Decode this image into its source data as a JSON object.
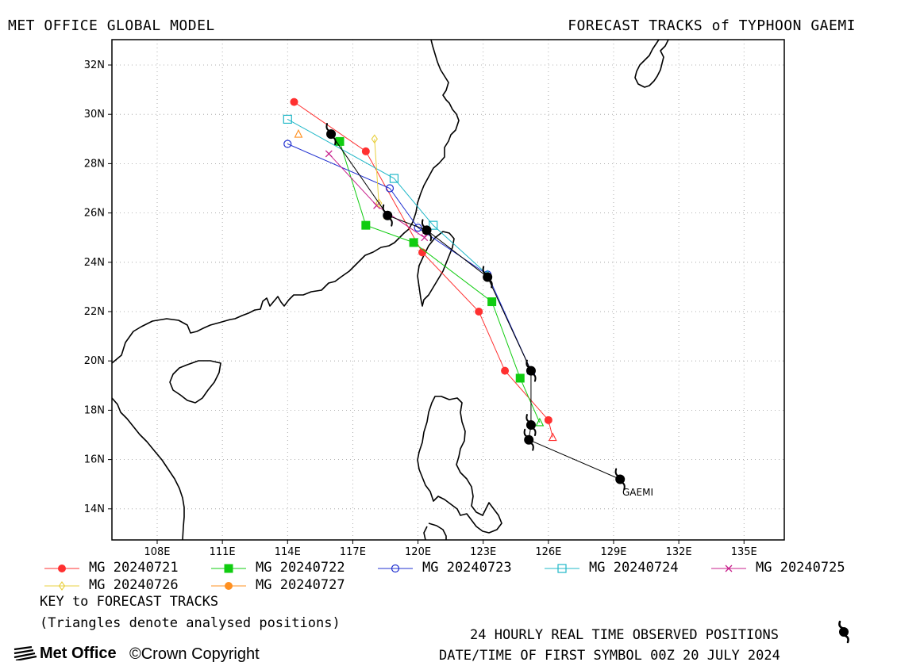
{
  "header": {
    "left": "MET OFFICE GLOBAL MODEL",
    "right": "FORECAST TRACKS of TYPHOON GAEMI"
  },
  "axes": {
    "lon_ticks": [
      "108E",
      "111E",
      "114E",
      "117E",
      "120E",
      "123E",
      "126E",
      "129E",
      "132E",
      "135E"
    ],
    "lat_ticks": [
      "32N",
      "30N",
      "28N",
      "26N",
      "24N",
      "22N",
      "20N",
      "18N",
      "16N",
      "14N"
    ],
    "grid": "dotted"
  },
  "storm_label": "GAEMI",
  "colors": {
    "MG 20240721": "#ff3030",
    "MG 20240722": "#10cc10",
    "MG 20240723": "#2030d0",
    "MG 20240724": "#20b8c8",
    "MG 20240725": "#c8208c",
    "MG 20240726": "#e8d040",
    "MG 20240727": "#ff9020",
    "observed": "#000000"
  },
  "legend": [
    {
      "label": "MG 20240721",
      "marker": "circle"
    },
    {
      "label": "MG 20240722",
      "marker": "square"
    },
    {
      "label": "MG 20240723",
      "marker": "open-circle"
    },
    {
      "label": "MG 20240724",
      "marker": "open-square"
    },
    {
      "label": "MG 20240725",
      "marker": "cross"
    },
    {
      "label": "MG 20240726",
      "marker": "open-diamond"
    },
    {
      "label": "MG 20240727",
      "marker": "circle"
    }
  ],
  "notes": {
    "key": "KEY to FORECAST TRACKS",
    "triangles": "(Triangles denote analysed positions)",
    "observed": "24 HOURLY REAL TIME OBSERVED POSITIONS",
    "first_symbol": "DATE/TIME OF FIRST SYMBOL 00Z 20 JULY 2024"
  },
  "footer": {
    "logo": "Met Office",
    "copyright": "©Crown Copyright"
  },
  "map_data": {
    "observed_track": [
      [
        129.3,
        15.2
      ],
      [
        125.1,
        16.8
      ],
      [
        125.2,
        17.4
      ],
      [
        125.2,
        19.6
      ],
      [
        123.2,
        23.4
      ],
      [
        120.4,
        25.3
      ],
      [
        118.6,
        25.9
      ],
      [
        116.0,
        29.2
      ]
    ],
    "forecast_tracks": [
      {
        "name": "MG 20240721",
        "analysed": [
          126.2,
          16.9
        ],
        "points": [
          [
            126.0,
            17.6
          ],
          [
            124.0,
            19.6
          ],
          [
            122.8,
            22.0
          ],
          [
            120.2,
            24.4
          ],
          [
            117.6,
            28.5
          ],
          [
            114.3,
            30.5
          ]
        ]
      },
      {
        "name": "MG 20240722",
        "analysed": [
          125.6,
          17.5
        ],
        "points": [
          [
            124.7,
            19.3
          ],
          [
            123.4,
            22.4
          ],
          [
            119.8,
            24.8
          ],
          [
            117.6,
            25.5
          ],
          [
            116.4,
            28.9
          ]
        ]
      },
      {
        "name": "MG 20240723",
        "analysed": [
          125.2,
          19.6
        ],
        "points": [
          [
            123.2,
            23.5
          ],
          [
            120.0,
            25.4
          ],
          [
            118.7,
            27.0
          ],
          [
            114.0,
            28.8
          ]
        ]
      },
      {
        "name": "MG 20240724",
        "analysed": [
          123.2,
          23.5
        ],
        "points": [
          [
            120.7,
            25.5
          ],
          [
            118.9,
            27.4
          ],
          [
            114.0,
            29.8
          ]
        ]
      },
      {
        "name": "MG 20240725",
        "analysed": [
          120.4,
          25.3
        ],
        "points": [
          [
            120.3,
            25.0
          ],
          [
            118.1,
            26.3
          ],
          [
            115.9,
            28.4
          ]
        ]
      },
      {
        "name": "MG 20240726",
        "analysed": [
          118.6,
          25.9
        ],
        "points": [
          [
            118.2,
            26.4
          ],
          [
            118.0,
            29.0
          ]
        ]
      },
      {
        "name": "MG 20240727",
        "analysed": [
          114.5,
          29.2
        ],
        "points": []
      }
    ]
  }
}
